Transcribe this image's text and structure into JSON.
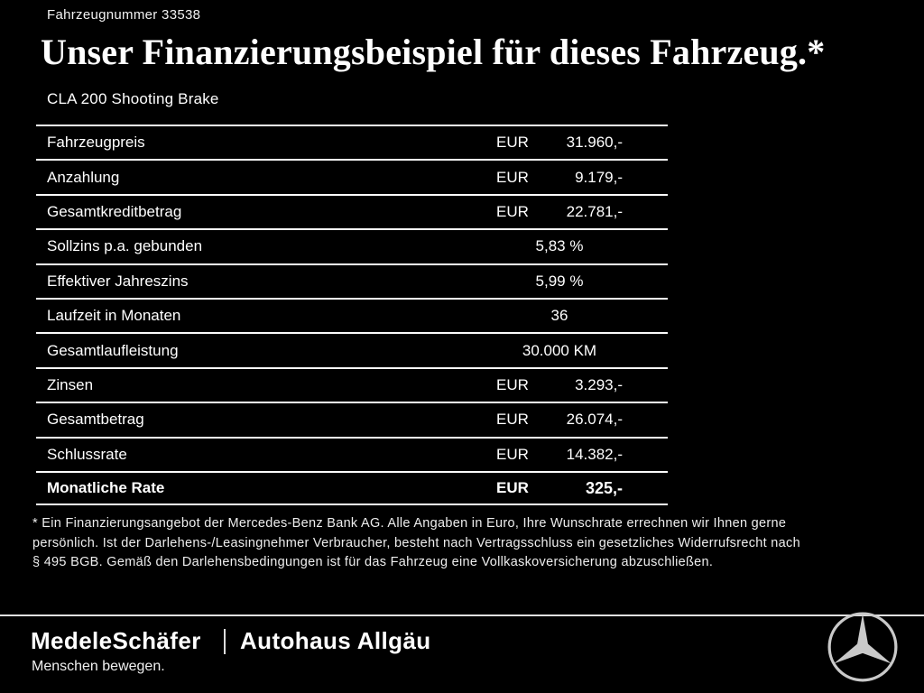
{
  "header": {
    "vehicle_number": "Fahrzeugnummer 33538",
    "title": "Unser Finanzierungsbeispiel für dieses Fahrzeug.*",
    "model": "CLA 200 Shooting Brake"
  },
  "table": {
    "rows": [
      {
        "label": "Fahrzeugpreis",
        "currency": "EUR",
        "value": "31.960,-",
        "bold": false
      },
      {
        "label": "Anzahlung",
        "currency": "EUR",
        "value": "9.179,-",
        "bold": false
      },
      {
        "label": "Gesamtkreditbetrag",
        "currency": "EUR",
        "value": "22.781,-",
        "bold": false
      },
      {
        "label": "Sollzins p.a. gebunden",
        "currency": "",
        "value": "5,83 %",
        "bold": false
      },
      {
        "label": "Effektiver Jahreszins",
        "currency": "",
        "value": "5,99 %",
        "bold": false
      },
      {
        "label": "Laufzeit in Monaten",
        "currency": "",
        "value": "36",
        "bold": false
      },
      {
        "label": "Gesamtlaufleistung",
        "currency": "",
        "value": "30.000 KM",
        "bold": false
      },
      {
        "label": "Zinsen",
        "currency": "EUR",
        "value": "3.293,-",
        "bold": false
      },
      {
        "label": "Gesamtbetrag",
        "currency": "EUR",
        "value": "26.074,-",
        "bold": false
      },
      {
        "label": "Schlussrate",
        "currency": "EUR",
        "value": "14.382,-",
        "bold": false
      },
      {
        "label": "Monatliche Rate",
        "currency": "EUR",
        "value": "325,-",
        "bold": true
      }
    ]
  },
  "footnote": {
    "lines": [
      "* Ein Finanzierungsangebot der Mercedes-Benz Bank AG. Alle Angaben in Euro, Ihre Wunschrate errechnen wir Ihnen gerne",
      "persönlich. Ist der Darlehens-/Leasingnehmer Verbraucher, besteht nach Vertragsschluss ein gesetzliches Widerrufsrecht nach",
      "§ 495 BGB. Gemäß den Darlehensbedingungen ist für das Fahrzeug eine Vollkaskoversicherung abzuschließen."
    ]
  },
  "footer": {
    "dealer_primary": "MedeleSchäfer",
    "dealer_secondary": "Autohaus Allgäu",
    "tagline": "Menschen bewegen.",
    "brand_icon": "mercedes-star-icon"
  },
  "colors": {
    "background": "#000000",
    "text": "#ffffff",
    "rule_lines": "#fbfbfb",
    "star_silver": "#c9c9c9"
  }
}
